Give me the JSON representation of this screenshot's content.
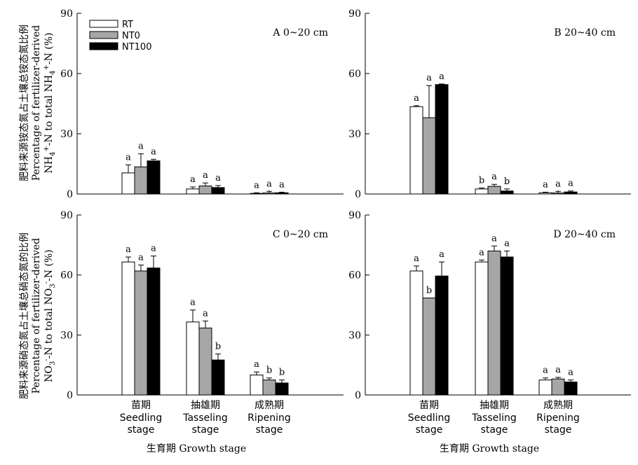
{
  "legend": [
    {
      "name": "RT",
      "color": "#ffffff"
    },
    {
      "name": "NT0",
      "color": "#a6a6a6"
    },
    {
      "name": "NT100",
      "color": "#000000"
    }
  ],
  "top_ylabel": {
    "line1": "肥料来源铵态氮占土壤总铵态氮比例",
    "line2": "Percentage of fertilizer-derived",
    "line3_prefix": "NH",
    "line3_sub": "4",
    "line3_sup": "+",
    "line3_mid": "-N to total NH",
    "line3_sub2": "4",
    "line3_sup2": "+",
    "line3_end": "-N (%)"
  },
  "bottom_ylabel": {
    "line1": "肥料来源硝态氮占土壤总硝态氮的比例",
    "line2": "Percentage of fertilizer-derived",
    "line3_prefix": "NO",
    "line3_sub": "3",
    "line3_sup": "-",
    "line3_mid": "-N to total NO",
    "line3_sub2": "3",
    "line3_sup2": "-",
    "line3_end": "-N (%)"
  },
  "xlabel": "生育期 Growth stage",
  "categories": [
    {
      "cn": "苗期",
      "en1": "Seedling",
      "en2": "stage"
    },
    {
      "cn": "抽雄期",
      "en1": "Tasseling",
      "en2": "stage"
    },
    {
      "cn": "成熟期",
      "en1": "Ripening",
      "en2": "stage"
    }
  ],
  "chart_data": [
    {
      "type": "bar",
      "panel": "A",
      "title": "A 0~20 cm",
      "ylim": [
        0,
        90
      ],
      "yticks": [
        0,
        30,
        60,
        90
      ],
      "series": [
        {
          "name": "RT",
          "values": [
            10.5,
            2.5,
            0.3
          ],
          "errors": [
            4.0,
            1.0,
            0.3
          ],
          "letters": [
            "a",
            "a",
            "a"
          ]
        },
        {
          "name": "NT0",
          "values": [
            13.5,
            4.0,
            0.5
          ],
          "errors": [
            6.5,
            1.5,
            0.8
          ],
          "letters": [
            "a",
            "a",
            "a"
          ]
        },
        {
          "name": "NT100",
          "values": [
            16.5,
            3.2,
            0.6
          ],
          "errors": [
            0.8,
            1.0,
            0.3
          ],
          "letters": [
            "a",
            "a",
            "a"
          ]
        }
      ]
    },
    {
      "type": "bar",
      "panel": "B",
      "title": "B 20~40 cm",
      "ylim": [
        0,
        90
      ],
      "yticks": [
        0,
        30,
        60,
        90
      ],
      "series": [
        {
          "name": "RT",
          "values": [
            43.5,
            2.5,
            0.6
          ],
          "errors": [
            0.5,
            0.5,
            0.3
          ],
          "letters": [
            "a",
            "b",
            "a"
          ]
        },
        {
          "name": "NT0",
          "values": [
            38.0,
            3.8,
            0.5
          ],
          "errors": [
            16.0,
            1.0,
            0.8
          ],
          "letters": [
            "a",
            "a",
            "a"
          ]
        },
        {
          "name": "NT100",
          "values": [
            54.5,
            1.5,
            1.0
          ],
          "errors": [
            0.3,
            1.0,
            0.5
          ],
          "letters": [
            "a",
            "b",
            "a"
          ]
        }
      ]
    },
    {
      "type": "bar",
      "panel": "C",
      "title": "C 0~20 cm",
      "ylim": [
        0,
        90
      ],
      "yticks": [
        0,
        30,
        60,
        90
      ],
      "series": [
        {
          "name": "RT",
          "values": [
            66.5,
            36.5,
            10.0
          ],
          "errors": [
            2.5,
            6.0,
            1.5
          ],
          "letters": [
            "a",
            "a",
            "a"
          ]
        },
        {
          "name": "NT0",
          "values": [
            62.0,
            33.5,
            7.5
          ],
          "errors": [
            3.0,
            3.5,
            1.0
          ],
          "letters": [
            "a",
            "a",
            "b"
          ]
        },
        {
          "name": "NT100",
          "values": [
            63.5,
            17.5,
            6.0
          ],
          "errors": [
            6.0,
            3.0,
            1.5
          ],
          "letters": [
            "a",
            "b",
            "b"
          ]
        }
      ]
    },
    {
      "type": "bar",
      "panel": "D",
      "title": "D 20~40 cm",
      "ylim": [
        0,
        90
      ],
      "yticks": [
        0,
        30,
        60,
        90
      ],
      "series": [
        {
          "name": "RT",
          "values": [
            62.0,
            66.5,
            7.5
          ],
          "errors": [
            2.5,
            1.0,
            1.0
          ],
          "letters": [
            "a",
            "a",
            "a"
          ]
        },
        {
          "name": "NT0",
          "values": [
            48.5,
            72.0,
            8.0
          ],
          "errors": [
            0,
            2.5,
            0.8
          ],
          "letters": [
            "b",
            "a",
            "a"
          ]
        },
        {
          "name": "NT100",
          "values": [
            59.5,
            69.0,
            6.5
          ],
          "errors": [
            7.0,
            3.0,
            1.0
          ],
          "letters": [
            "a",
            "a",
            "a"
          ]
        }
      ]
    }
  ]
}
